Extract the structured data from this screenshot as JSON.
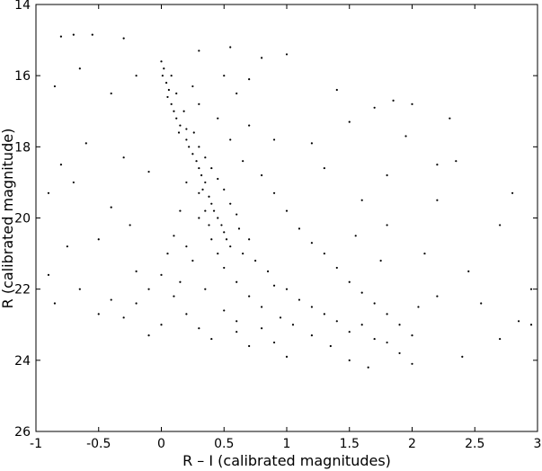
{
  "chart_data": {
    "type": "scatter",
    "xlabel": "R – I (calibrated magnitudes)",
    "ylabel": "R (calibrated magnitude)",
    "xlim": [
      -1,
      3
    ],
    "xticks": [
      -1,
      -0.5,
      0,
      0.5,
      1,
      1.5,
      2,
      2.5,
      3
    ],
    "ylim": [
      14,
      26
    ],
    "yticks": [
      14,
      16,
      18,
      20,
      22,
      24,
      26
    ],
    "y_reversed": true,
    "grid": false,
    "color": "#000000",
    "x": [
      0.0,
      0.02,
      0.01,
      0.04,
      0.06,
      0.05,
      0.08,
      0.1,
      0.12,
      0.15,
      0.14,
      0.2,
      0.22,
      0.25,
      0.28,
      0.3,
      0.32,
      0.35,
      0.33,
      0.38,
      0.4,
      0.42,
      0.45,
      0.48,
      0.5,
      0.52,
      0.55,
      0.08,
      0.12,
      0.18,
      0.2,
      0.26,
      0.3,
      0.35,
      0.4,
      0.45,
      0.3,
      0.5,
      0.55,
      0.6,
      0.35,
      0.38,
      0.62,
      0.7,
      0.4,
      0.45,
      0.65,
      0.75,
      0.5,
      0.85,
      0.6,
      0.9,
      1.0,
      0.7,
      1.1,
      0.8,
      1.2,
      0.95,
      1.3,
      1.05,
      1.4,
      1.5,
      1.2,
      1.6,
      1.7,
      1.35,
      1.8,
      1.5,
      1.9,
      2.0,
      1.65,
      0.3,
      0.25,
      0.45,
      0.5,
      0.6,
      0.7,
      0.55,
      0.65,
      0.8,
      0.9,
      1.0,
      1.1,
      1.2,
      1.3,
      1.4,
      1.5,
      1.6,
      1.7,
      1.8,
      1.9,
      0.2,
      0.15,
      0.1,
      0.05,
      0.0,
      -0.1,
      -0.2,
      -0.3,
      -0.4,
      -0.5,
      -0.2,
      0.1,
      0.2,
      0.3,
      0.4,
      0.0,
      -0.1,
      0.6,
      0.7,
      0.9,
      1.0,
      0.25,
      0.3,
      0.2,
      0.15,
      0.35,
      0.5,
      0.6,
      0.8,
      -0.8,
      -0.7,
      -0.55,
      -0.3,
      -0.85,
      -0.65,
      -0.4,
      -0.2,
      -0.6,
      -0.8,
      -0.9,
      -0.7,
      -0.5,
      -0.75,
      -0.9,
      -0.85,
      -0.65,
      0.3,
      0.55,
      0.8,
      1.0,
      0.7,
      1.4,
      1.7,
      1.85,
      2.0,
      1.5,
      1.95,
      2.3,
      1.8,
      2.2,
      2.35,
      2.2,
      2.8,
      2.7,
      2.45,
      2.95,
      2.55,
      2.85,
      2.95,
      2.4,
      2.7,
      2.2,
      2.1,
      1.8,
      -0.3,
      -0.1,
      -0.4,
      -0.25,
      1.2,
      0.9,
      1.3,
      1.6,
      1.55,
      1.75,
      2.05,
      2.0
    ],
    "values": [
      15.6,
      15.8,
      16.0,
      16.2,
      16.4,
      16.6,
      16.8,
      17.0,
      17.2,
      17.4,
      17.6,
      17.8,
      18.0,
      18.2,
      18.4,
      18.6,
      18.8,
      19.0,
      19.2,
      19.4,
      19.6,
      19.8,
      20.0,
      20.2,
      20.4,
      20.6,
      20.8,
      16.0,
      16.5,
      17.0,
      17.5,
      17.6,
      18.0,
      18.3,
      18.6,
      18.9,
      19.3,
      19.2,
      19.6,
      19.9,
      19.8,
      20.2,
      20.3,
      20.6,
      20.6,
      21.0,
      21.0,
      21.2,
      21.4,
      21.5,
      21.8,
      21.9,
      22.0,
      22.2,
      22.3,
      22.5,
      22.5,
      22.8,
      22.7,
      23.0,
      22.9,
      23.2,
      23.3,
      23.0,
      23.4,
      23.6,
      23.5,
      24.0,
      23.8,
      24.1,
      24.2,
      16.8,
      16.3,
      17.2,
      16.0,
      16.5,
      17.4,
      17.8,
      18.4,
      18.8,
      19.3,
      19.8,
      20.3,
      20.7,
      21.0,
      21.4,
      21.8,
      22.1,
      22.4,
      22.7,
      23.0,
      19.0,
      19.8,
      20.5,
      21.0,
      21.6,
      22.0,
      22.4,
      22.8,
      22.3,
      22.7,
      21.5,
      22.2,
      22.7,
      23.1,
      23.4,
      23.0,
      23.3,
      23.2,
      23.6,
      23.5,
      23.9,
      21.2,
      20.0,
      20.8,
      21.8,
      22.0,
      22.6,
      22.9,
      23.1,
      14.9,
      14.85,
      14.85,
      14.95,
      16.3,
      15.8,
      16.5,
      16.0,
      17.9,
      18.5,
      19.3,
      19.0,
      20.6,
      20.8,
      21.6,
      22.4,
      22.0,
      15.3,
      15.2,
      15.5,
      15.4,
      16.1,
      16.4,
      16.9,
      16.7,
      16.8,
      17.3,
      17.7,
      17.2,
      18.8,
      18.5,
      18.4,
      19.5,
      19.3,
      20.2,
      21.5,
      22.0,
      22.4,
      22.9,
      23.0,
      23.9,
      23.4,
      22.2,
      21.0,
      20.2,
      18.3,
      18.7,
      19.7,
      20.2,
      17.9,
      17.8,
      18.6,
      19.5,
      20.5,
      21.2,
      22.5,
      23.3
    ]
  }
}
